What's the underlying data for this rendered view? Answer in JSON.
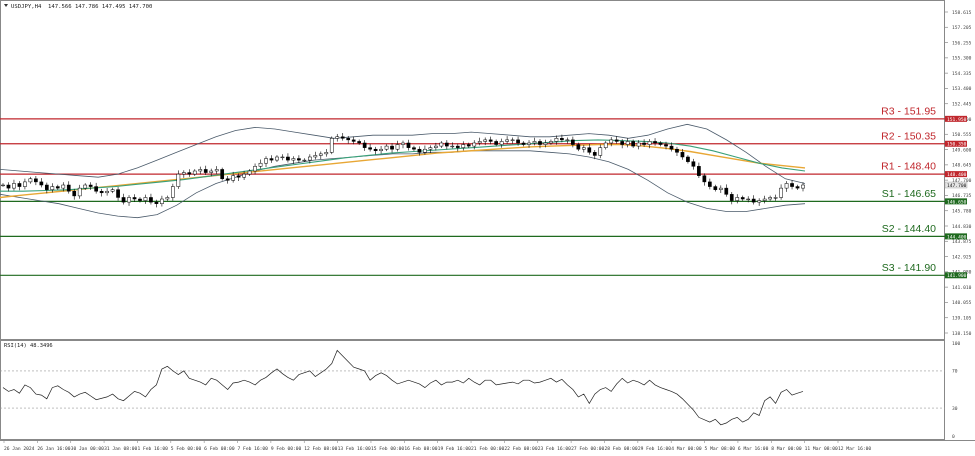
{
  "chart_header": {
    "symbol": "USDJPY,H4",
    "ohlc": "147.566 147.786 147.495 147.700"
  },
  "rsi_header": "RSI(14) 48.3496",
  "last_price_tag": "147.700",
  "colors": {
    "resistance": "#c0272d",
    "support": "#1f6a1f",
    "price_tag_bg": "#e4e4e4",
    "ma_long": "#e8a735",
    "ma_mid": "#3aa07a",
    "bollinger": "#4a5a6a",
    "candles": "#000000"
  },
  "chart_data": {
    "type": "candlestick",
    "symbol": "USDJPY",
    "timeframe": "H4",
    "ylim": [
      138.0,
      159.2
    ],
    "y_ticks": [
      "158.615",
      "157.205",
      "156.255",
      "155.300",
      "154.335",
      "153.400",
      "152.445",
      "151.500",
      "150.555",
      "149.600",
      "148.645",
      "147.700",
      "146.735",
      "145.780",
      "144.830",
      "143.875",
      "142.925",
      "141.980",
      "141.010",
      "140.055",
      "139.105",
      "138.150"
    ],
    "x_tick_labels": [
      "26 Jan 2024",
      "26 Jan 16:00",
      "30 Jan 00:00",
      "31 Jan 08:00",
      "1 Feb 16:00",
      "5 Feb 00:00",
      "6 Feb 08:00",
      "7 Feb 16:00",
      "9 Feb 00:00",
      "12 Feb 08:00",
      "13 Feb 16:00",
      "15 Feb 00:00",
      "16 Feb 08:00",
      "19 Feb 16:00",
      "21 Feb 00:00",
      "22 Feb 08:00",
      "23 Feb 16:00",
      "27 Feb 00:00",
      "28 Feb 08:00",
      "29 Feb 16:00",
      "4 Mar 00:00",
      "5 Mar 08:00",
      "6 Mar 16:00",
      "8 Mar 00:00",
      "11 Mar 08:00",
      "12 Mar 16:00"
    ],
    "levels": [
      {
        "label": "R3 - 151.95",
        "tag": "151.950",
        "value": 151.95,
        "kind": "resistance"
      },
      {
        "label": "R2 - 150.35",
        "tag": "150.350",
        "value": 150.35,
        "kind": "resistance"
      },
      {
        "label": "R1 - 148.40",
        "tag": "148.400",
        "value": 148.4,
        "kind": "resistance"
      },
      {
        "label": "S1 - 146.65",
        "tag": "146.650",
        "value": 146.65,
        "kind": "support"
      },
      {
        "label": "S2 - 144.40",
        "tag": "144.400",
        "value": 144.4,
        "kind": "support"
      },
      {
        "label": "S3 - 141.90",
        "tag": "141.900",
        "value": 141.9,
        "kind": "support"
      }
    ],
    "last_price": 147.7,
    "close": [
      147.7,
      147.5,
      147.8,
      147.6,
      147.9,
      148.1,
      147.9,
      147.7,
      147.4,
      147.6,
      147.5,
      147.7,
      147.3,
      147.0,
      147.5,
      147.7,
      147.6,
      147.3,
      147.2,
      147.3,
      147.4,
      146.9,
      146.6,
      146.9,
      146.8,
      146.7,
      146.9,
      146.6,
      146.5,
      146.8,
      146.9,
      147.6,
      148.4,
      148.5,
      148.4,
      148.6,
      148.7,
      148.5,
      148.6,
      148.7,
      148.1,
      148.0,
      148.3,
      148.2,
      148.4,
      148.6,
      148.9,
      149.1,
      149.4,
      149.3,
      149.5,
      149.5,
      149.3,
      149.4,
      149.3,
      149.3,
      149.5,
      149.6,
      149.7,
      149.8,
      150.7,
      150.8,
      150.7,
      150.6,
      150.5,
      150.4,
      150.1,
      150.0,
      149.9,
      150.0,
      150.2,
      150.0,
      150.3,
      150.4,
      150.1,
      150.0,
      149.8,
      150.0,
      150.1,
      150.2,
      150.4,
      150.2,
      150.2,
      150.1,
      150.3,
      150.2,
      150.4,
      150.5,
      150.6,
      150.5,
      150.3,
      150.5,
      150.6,
      150.6,
      150.4,
      150.3,
      150.4,
      150.5,
      150.3,
      150.4,
      150.5,
      150.7,
      150.6,
      150.6,
      150.3,
      150.0,
      150.1,
      149.8,
      149.6,
      150.1,
      150.4,
      150.6,
      150.5,
      150.3,
      150.5,
      150.2,
      150.4,
      150.3,
      150.5,
      150.4,
      150.3,
      150.2,
      150.0,
      149.8,
      149.5,
      149.2,
      148.9,
      148.3,
      147.9,
      147.6,
      147.4,
      147.5,
      147.1,
      146.7,
      146.9,
      146.8,
      146.8,
      146.6,
      146.7,
      146.8,
      146.9,
      146.9,
      147.5,
      147.8,
      147.6,
      147.5,
      147.7
    ],
    "ma_long": [
      146.9,
      147.05,
      147.2,
      147.35,
      147.5,
      147.65,
      147.8,
      147.95,
      148.1,
      148.25,
      148.4,
      148.55,
      148.7,
      148.85,
      149.0,
      149.15,
      149.3,
      149.45,
      149.6,
      149.75,
      149.85,
      149.95,
      150.05,
      150.15,
      150.2,
      150.25,
      150.3,
      150.3,
      150.2,
      150.05,
      149.85,
      149.6,
      149.35,
      149.1,
      148.95,
      148.8
    ],
    "ma_mid": [
      147.3,
      147.3,
      147.35,
      147.4,
      147.5,
      147.6,
      147.75,
      147.9,
      148.05,
      148.25,
      148.45,
      148.65,
      148.85,
      149.05,
      149.25,
      149.45,
      149.6,
      149.75,
      149.85,
      149.95,
      150.05,
      150.15,
      150.25,
      150.35,
      150.45,
      150.55,
      150.6,
      150.55,
      150.5,
      150.4,
      150.2,
      149.9,
      149.5,
      149.1,
      148.8,
      148.6
    ],
    "bb_upper": [
      148.7,
      148.6,
      148.5,
      148.4,
      148.3,
      148.2,
      148.4,
      148.8,
      149.3,
      149.8,
      150.3,
      150.8,
      151.2,
      151.4,
      151.3,
      151.1,
      150.9,
      150.7,
      150.8,
      150.9,
      150.9,
      150.9,
      151.0,
      151.0,
      151.1,
      151.0,
      150.9,
      150.8,
      150.8,
      150.9,
      151.0,
      150.9,
      150.7,
      150.9,
      151.3,
      151.6,
      151.3,
      150.6,
      149.8,
      148.9,
      148.1,
      147.8
    ],
    "bb_lower": [
      147.1,
      146.9,
      146.7,
      146.5,
      146.2,
      145.9,
      145.7,
      145.6,
      145.8,
      146.4,
      147.2,
      147.8,
      148.2,
      148.6,
      148.9,
      149.1,
      149.3,
      149.4,
      149.5,
      149.6,
      149.7,
      149.7,
      149.8,
      149.8,
      149.9,
      149.9,
      149.9,
      149.9,
      149.8,
      149.7,
      149.5,
      149.2,
      148.7,
      148.0,
      147.2,
      146.6,
      146.2,
      146.0,
      146.0,
      146.2,
      146.4,
      146.5
    ],
    "rsi": {
      "label": "RSI(14) 48.3496",
      "value": 48.3496,
      "levels": [
        30,
        70
      ],
      "ticks": [
        "100",
        "70",
        "30",
        "0"
      ],
      "ylim": [
        0,
        100
      ],
      "values": [
        52,
        48,
        50,
        46,
        55,
        52,
        45,
        44,
        40,
        52,
        54,
        50,
        47,
        42,
        45,
        47,
        43,
        39,
        42,
        45,
        40,
        38,
        43,
        48,
        46,
        42,
        50,
        55,
        72,
        75,
        70,
        66,
        70,
        62,
        60,
        58,
        55,
        62,
        60,
        55,
        50,
        57,
        58,
        60,
        58,
        55,
        60,
        63,
        68,
        72,
        67,
        63,
        60,
        66,
        70,
        64,
        68,
        72,
        78,
        92,
        86,
        80,
        74,
        72,
        70,
        60,
        65,
        68,
        65,
        60,
        56,
        58,
        60,
        58,
        56,
        52,
        57,
        60,
        55,
        58,
        58,
        60,
        57,
        62,
        58,
        55,
        60,
        60,
        55,
        57,
        58,
        56,
        60,
        60,
        57,
        58,
        60,
        62,
        58,
        61,
        55,
        50,
        42,
        45,
        35,
        45,
        50,
        52,
        48,
        56,
        62,
        57,
        60,
        58,
        55,
        60,
        55,
        52,
        50,
        48,
        45,
        40,
        34,
        28,
        20,
        15,
        18,
        12,
        14,
        18,
        20,
        15,
        18,
        25,
        22,
        38,
        42,
        35,
        47,
        50,
        44,
        46,
        48
      ]
    }
  }
}
